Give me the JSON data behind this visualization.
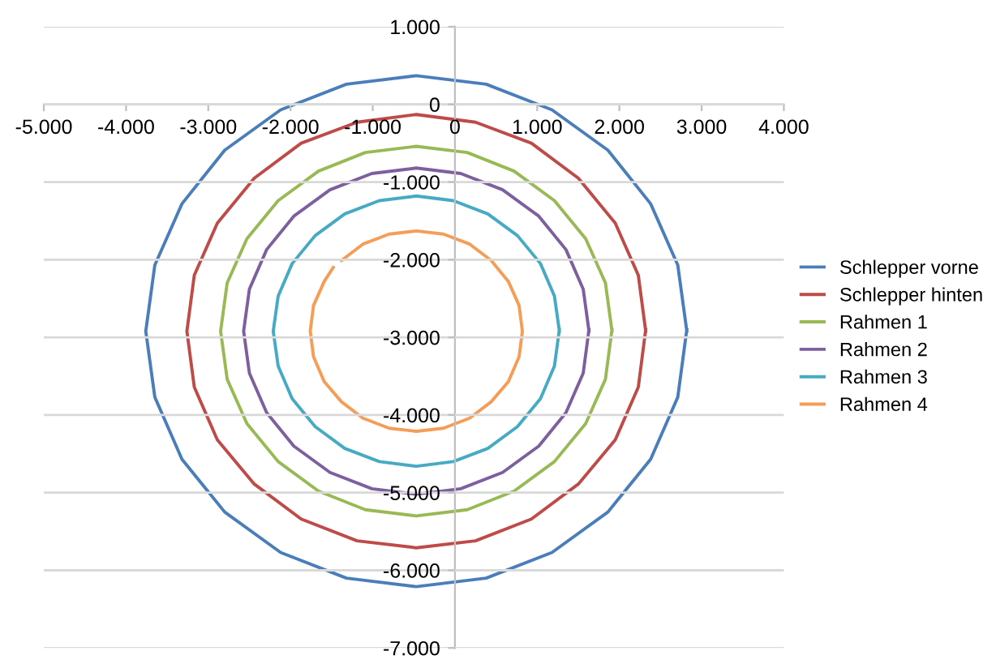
{
  "chart_data": {
    "type": "line",
    "xlim": [
      -5000,
      4000
    ],
    "ylim": [
      -7000,
      1000
    ],
    "xticks": [
      {
        "value": -5000,
        "label": "-5.000"
      },
      {
        "value": -4000,
        "label": "-4.000"
      },
      {
        "value": -3000,
        "label": "-3.000"
      },
      {
        "value": -2000,
        "label": "-2.000"
      },
      {
        "value": -1000,
        "label": "-1.000"
      },
      0,
      {
        "value": 1000,
        "label": "1.000"
      },
      {
        "value": 2000,
        "label": "2.000"
      },
      {
        "value": 3000,
        "label": "3.000"
      },
      {
        "value": 4000,
        "label": "4.000"
      }
    ],
    "yticks": [
      {
        "value": -7000,
        "label": "-7.000"
      },
      {
        "value": -6000,
        "label": "-6.000"
      },
      {
        "value": -5000,
        "label": "-5.000"
      },
      {
        "value": -4000,
        "label": "-4.000"
      },
      {
        "value": -3000,
        "label": "-3.000"
      },
      {
        "value": -2000,
        "label": "-2.000"
      },
      {
        "value": -1000,
        "label": "-1.000"
      },
      0,
      {
        "value": 1000,
        "label": "1.000"
      }
    ],
    "grid": "y",
    "legend": "right",
    "marker": "none",
    "line_style": "solid",
    "series": [
      {
        "name": "Schlepper vorne",
        "color": "#4a7ebb",
        "x": [
          2820,
          2710,
          2380,
          1860,
          1180,
          380,
          -470,
          -1320,
          -2120,
          -2800,
          -3320,
          -3650,
          -3760,
          -3650,
          -3320,
          -2800,
          -2120,
          -1320,
          -470,
          380,
          1180,
          1860,
          2380,
          2710,
          2820
        ],
        "values": [
          -2920,
          -2070,
          -1280,
          -590,
          -70,
          260,
          370,
          260,
          -70,
          -590,
          -1280,
          -2070,
          -2920,
          -3770,
          -4570,
          -5250,
          -5770,
          -6100,
          -6210,
          -6100,
          -5770,
          -5250,
          -4570,
          -3770,
          -2900
        ]
      },
      {
        "name": "Schlepper hinten",
        "color": "#be4b48",
        "x": [
          2320,
          2230,
          1950,
          1500,
          930,
          250,
          -470,
          -1190,
          -1870,
          -2440,
          -2890,
          -3170,
          -3260,
          -3170,
          -2890,
          -2440,
          -1870,
          -1190,
          -470,
          250,
          930,
          1500,
          1950,
          2230,
          2320
        ],
        "values": [
          -2920,
          -2200,
          -1530,
          -950,
          -500,
          -230,
          -130,
          -230,
          -500,
          -950,
          -1530,
          -2200,
          -2920,
          -3640,
          -4320,
          -4890,
          -5340,
          -5620,
          -5710,
          -5620,
          -5340,
          -4890,
          -4320,
          -3640,
          -2900
        ]
      },
      {
        "name": "Rahmen 1",
        "color": "#98b954",
        "x": [
          1910,
          1830,
          1590,
          1210,
          720,
          150,
          -470,
          -1090,
          -1660,
          -2150,
          -2530,
          -2770,
          -2850,
          -2770,
          -2530,
          -2150,
          -1660,
          -1090,
          -470,
          150,
          720,
          1210,
          1590,
          1830,
          1910
        ],
        "values": [
          -2920,
          -2300,
          -1730,
          -1240,
          -860,
          -620,
          -540,
          -620,
          -860,
          -1240,
          -1730,
          -2300,
          -2920,
          -3540,
          -4110,
          -4600,
          -4980,
          -5220,
          -5300,
          -5220,
          -4980,
          -4600,
          -4110,
          -3540,
          -2900
        ]
      },
      {
        "name": "Rahmen 2",
        "color": "#7d5fa0",
        "x": [
          1630,
          1560,
          1350,
          1020,
          580,
          70,
          -470,
          -1010,
          -1520,
          -1960,
          -2290,
          -2500,
          -2570,
          -2500,
          -2290,
          -1960,
          -1520,
          -1010,
          -470,
          70,
          580,
          1020,
          1350,
          1560,
          1630
        ],
        "values": [
          -2920,
          -2380,
          -1870,
          -1440,
          -1100,
          -890,
          -820,
          -890,
          -1100,
          -1440,
          -1870,
          -2380,
          -2920,
          -3460,
          -3970,
          -4400,
          -4740,
          -4950,
          -5020,
          -4950,
          -4740,
          -4400,
          -3970,
          -3460,
          -2900
        ]
      },
      {
        "name": "Rahmen 3",
        "color": "#46aac5",
        "x": [
          1270,
          1210,
          1040,
          760,
          400,
          -20,
          -470,
          -920,
          -1340,
          -1700,
          -1980,
          -2150,
          -2210,
          -2150,
          -1980,
          -1700,
          -1340,
          -920,
          -470,
          -20,
          400,
          760,
          1040,
          1210,
          1270
        ],
        "values": [
          -2920,
          -2470,
          -2050,
          -1690,
          -1410,
          -1240,
          -1180,
          -1240,
          -1410,
          -1690,
          -2050,
          -2470,
          -2920,
          -3370,
          -3790,
          -4150,
          -4430,
          -4600,
          -4660,
          -4600,
          -4430,
          -4150,
          -3790,
          -3370,
          -2900
        ]
      },
      {
        "name": "Rahmen 4",
        "color": "#f59d56",
        "x": [
          -1480,
          -1590,
          -1720,
          -1760,
          -1720,
          -1590,
          -1380,
          -1120,
          -800,
          -470,
          -140,
          180,
          440,
          650,
          780,
          820,
          780,
          650,
          440,
          180,
          -140,
          -470,
          -800,
          -1120,
          -1380
        ],
        "values": [
          -2100,
          -2280,
          -2590,
          -2920,
          -3250,
          -3570,
          -3830,
          -4040,
          -4170,
          -4210,
          -4170,
          -4040,
          -3830,
          -3570,
          -3250,
          -2920,
          -2590,
          -2280,
          -2010,
          -1800,
          -1670,
          -1630,
          -1670,
          -1800,
          -2010
        ]
      }
    ]
  }
}
